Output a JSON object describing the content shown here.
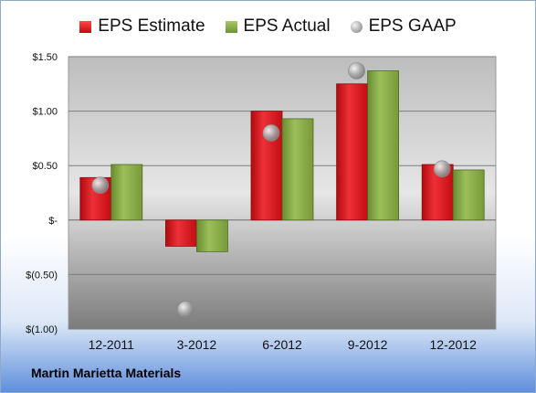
{
  "chart_data": {
    "type": "bar",
    "title": "",
    "xlabel": "",
    "ylabel": "",
    "categories": [
      "12-2011",
      "3-2012",
      "6-2012",
      "9-2012",
      "12-2012"
    ],
    "series": [
      {
        "name": "EPS Estimate",
        "type": "bar",
        "color": "#d9161c",
        "values": [
          0.39,
          -0.24,
          1.0,
          1.25,
          0.51
        ]
      },
      {
        "name": "EPS Actual",
        "type": "bar",
        "color": "#8aad4a",
        "values": [
          0.51,
          -0.29,
          0.93,
          1.37,
          0.46
        ]
      },
      {
        "name": "EPS GAAP",
        "type": "scatter",
        "color": "#a0a0a0",
        "values": [
          0.32,
          -0.82,
          0.8,
          1.37,
          0.47
        ]
      }
    ],
    "ylim": [
      -1.0,
      1.5
    ],
    "yticks": [
      1.5,
      1.0,
      0.5,
      0,
      -0.5,
      -1.0
    ],
    "ytick_labels": [
      "$1.50",
      "$1.00",
      "$0.50",
      "$-",
      "$(0.50)",
      "$(1.00)"
    ],
    "grid": true,
    "legend_position": "top"
  },
  "company": "Martin Marietta Materials"
}
